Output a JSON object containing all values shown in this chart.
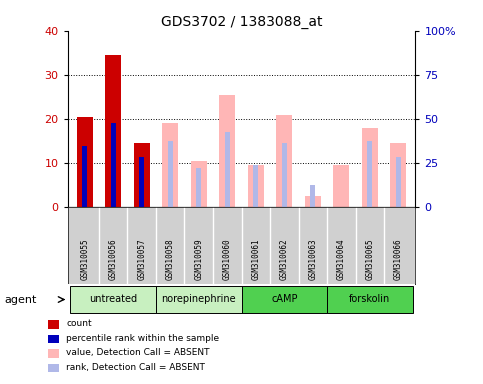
{
  "title": "GDS3702 / 1383088_at",
  "samples": [
    "GSM310055",
    "GSM310056",
    "GSM310057",
    "GSM310058",
    "GSM310059",
    "GSM310060",
    "GSM310061",
    "GSM310062",
    "GSM310063",
    "GSM310064",
    "GSM310065",
    "GSM310066"
  ],
  "count_values": [
    20.5,
    34.5,
    14.5,
    null,
    null,
    null,
    null,
    null,
    null,
    null,
    null,
    null
  ],
  "percentile_values": [
    14.0,
    19.0,
    11.5,
    null,
    null,
    null,
    null,
    null,
    null,
    null,
    null,
    null
  ],
  "absent_value_values": [
    null,
    null,
    null,
    19.0,
    10.5,
    25.5,
    9.5,
    21.0,
    2.5,
    9.5,
    18.0,
    14.5
  ],
  "absent_rank_values": [
    null,
    null,
    null,
    15.0,
    9.0,
    17.0,
    9.5,
    14.5,
    5.0,
    null,
    15.0,
    11.5
  ],
  "groups": [
    {
      "label": "untreated",
      "start": 0,
      "end": 3
    },
    {
      "label": "norepinephrine",
      "start": 3,
      "end": 6
    },
    {
      "label": "cAMP",
      "start": 6,
      "end": 9
    },
    {
      "label": "forskolin",
      "start": 9,
      "end": 12
    }
  ],
  "group_colors": [
    "#c8f0c0",
    "#c8f0c0",
    "#50d050",
    "#50d050"
  ],
  "ylim_left": [
    0,
    40
  ],
  "ylim_right": [
    0,
    100
  ],
  "yticks_left": [
    0,
    10,
    20,
    30,
    40
  ],
  "yticks_right": [
    0,
    25,
    50,
    75,
    100
  ],
  "bar_width": 0.55,
  "narrow_bar_width": 0.18,
  "count_color": "#cc0000",
  "percentile_color": "#0000bb",
  "absent_value_color": "#ffb6b6",
  "absent_rank_color": "#b0b8e8",
  "plot_bg": "#ffffff",
  "label_area_color": "#d0d0d0",
  "left_label_color": "#cc0000",
  "right_label_color": "#0000bb",
  "legend_items": [
    [
      "#cc0000",
      "count"
    ],
    [
      "#0000bb",
      "percentile rank within the sample"
    ],
    [
      "#ffb6b6",
      "value, Detection Call = ABSENT"
    ],
    [
      "#b0b8e8",
      "rank, Detection Call = ABSENT"
    ]
  ]
}
